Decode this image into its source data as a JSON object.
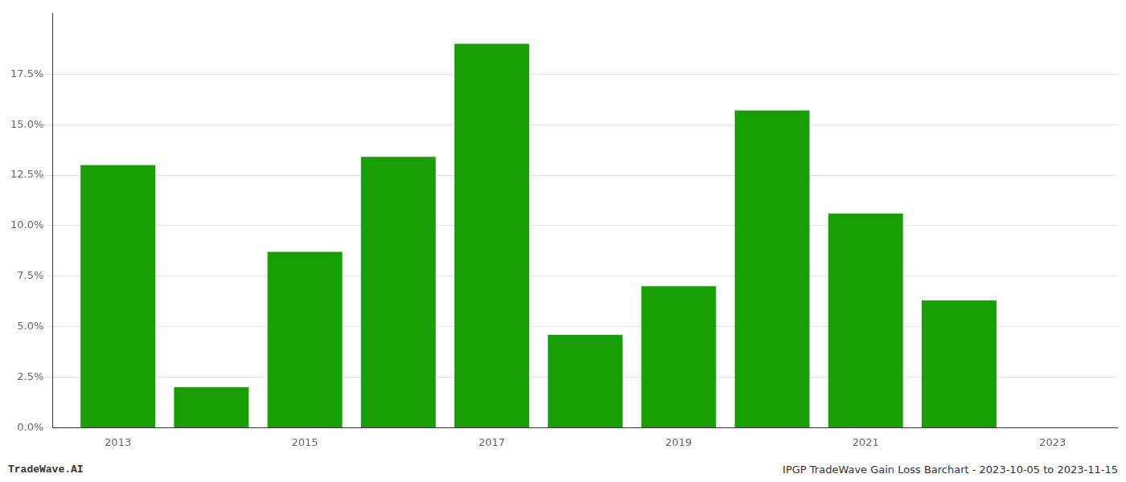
{
  "chart_data": {
    "type": "bar",
    "x": [
      2013,
      2014,
      2015,
      2016,
      2017,
      2018,
      2019,
      2020,
      2021,
      2022
    ],
    "values": [
      0.13,
      0.02,
      0.087,
      0.134,
      0.19,
      0.046,
      0.07,
      0.157,
      0.106,
      0.063
    ],
    "color": "#1a9e06",
    "xlim": [
      2012.3,
      2023.7
    ],
    "xticks": [
      2013,
      2015,
      2017,
      2019,
      2021,
      2023
    ],
    "ylim": [
      0.0,
      0.205
    ],
    "yticks": [
      {
        "value": 0.0,
        "label": "0.0%"
      },
      {
        "value": 0.025,
        "label": "2.5%"
      },
      {
        "value": 0.05,
        "label": "5.0%"
      },
      {
        "value": 0.075,
        "label": "7.5%"
      },
      {
        "value": 0.1,
        "label": "10.0%"
      },
      {
        "value": 0.125,
        "label": "12.5%"
      },
      {
        "value": 0.15,
        "label": "15.0%"
      },
      {
        "value": 0.175,
        "label": "17.5%"
      }
    ],
    "grid": "y",
    "annotations": [
      "TradeWave.AI",
      "IPGP TradeWave Gain Loss Barchart - 2023-10-05 to 2023-11-15"
    ]
  }
}
